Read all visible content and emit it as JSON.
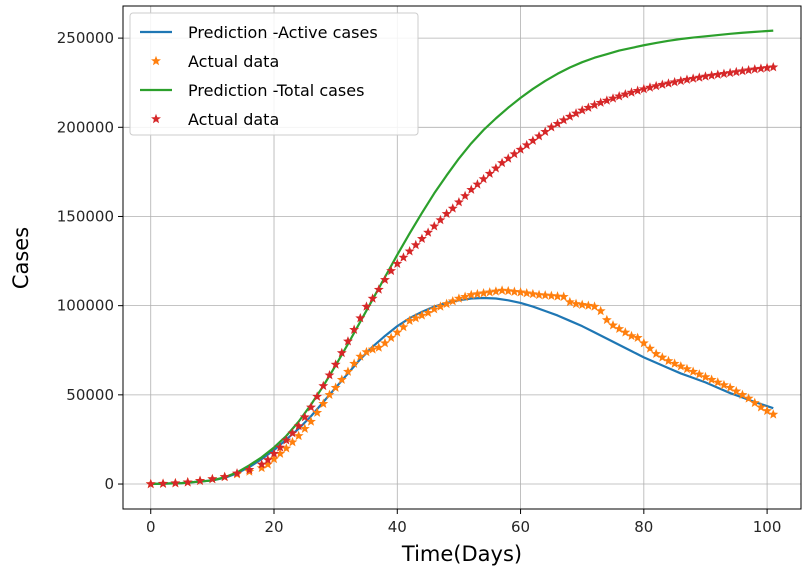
{
  "chart_data": {
    "type": "line",
    "title": "",
    "xlabel": "Time(Days)",
    "ylabel": "Cases",
    "xlim": [
      -4.5,
      105.5
    ],
    "ylim": [
      -14000,
      268000
    ],
    "xticks": [
      0,
      20,
      40,
      60,
      80,
      100
    ],
    "yticks": [
      0,
      50000,
      100000,
      150000,
      200000,
      250000
    ],
    "grid": true,
    "legend_position": "upper-left",
    "series": [
      {
        "name": "Prediction -Active cases",
        "kind": "line",
        "color": "#1f77b4",
        "x": [
          0,
          5,
          10,
          12,
          14,
          16,
          18,
          20,
          22,
          24,
          26,
          28,
          30,
          32,
          34,
          36,
          38,
          40,
          42,
          44,
          46,
          48,
          50,
          52,
          54,
          56,
          58,
          60,
          62,
          64,
          66,
          68,
          70,
          72,
          74,
          76,
          78,
          80,
          82,
          84,
          86,
          88,
          90,
          92,
          94,
          96,
          98,
          101
        ],
        "y": [
          0,
          500,
          2000,
          3500,
          6000,
          9500,
          14000,
          19000,
          25000,
          31000,
          38000,
          46000,
          54000,
          62000,
          70000,
          77000,
          83000,
          88500,
          93000,
          96500,
          99500,
          101500,
          103000,
          104000,
          104300,
          104000,
          103000,
          101500,
          99500,
          97000,
          94500,
          91500,
          88500,
          85000,
          81500,
          78000,
          74500,
          71000,
          68000,
          65000,
          62000,
          59500,
          57000,
          54000,
          51000,
          48500,
          46000,
          42500
        ]
      },
      {
        "name": "Actual data",
        "kind": "marker",
        "marker": "star",
        "color": "#ff7f0e",
        "x": [
          0,
          2,
          4,
          6,
          8,
          10,
          12,
          14,
          16,
          18,
          19,
          20,
          21,
          22,
          23,
          24,
          25,
          26,
          27,
          28,
          29,
          30,
          31,
          32,
          33,
          34,
          35,
          36,
          37,
          38,
          39,
          40,
          41,
          42,
          43,
          44,
          45,
          46,
          47,
          48,
          49,
          50,
          51,
          52,
          53,
          54,
          55,
          56,
          57,
          58,
          59,
          60,
          61,
          62,
          63,
          64,
          65,
          66,
          67,
          68,
          69,
          70,
          71,
          72,
          73,
          74,
          75,
          76,
          77,
          78,
          79,
          80,
          81,
          82,
          83,
          84,
          85,
          86,
          87,
          88,
          89,
          90,
          91,
          92,
          93,
          94,
          95,
          96,
          97,
          98,
          99,
          100,
          101
        ],
        "y": [
          0,
          200,
          500,
          1000,
          1800,
          2800,
          4000,
          5500,
          7000,
          9000,
          11000,
          14000,
          17000,
          20000,
          23500,
          27000,
          31000,
          35000,
          40000,
          45000,
          50000,
          54000,
          58500,
          63000,
          67500,
          71500,
          74000,
          75500,
          76500,
          79000,
          82000,
          85000,
          88000,
          91500,
          93000,
          94500,
          96000,
          98000,
          99500,
          101000,
          102500,
          104000,
          105000,
          106000,
          106500,
          107000,
          107500,
          108000,
          108500,
          108200,
          107800,
          107500,
          107000,
          106500,
          106000,
          105800,
          105500,
          105200,
          105000,
          102000,
          101000,
          100500,
          100000,
          99500,
          97000,
          92000,
          89000,
          87000,
          85000,
          83000,
          82000,
          79000,
          76000,
          73000,
          71000,
          69000,
          67500,
          66000,
          64500,
          63000,
          61500,
          60000,
          58500,
          57000,
          55500,
          54000,
          52000,
          50000,
          48000,
          45500,
          43000,
          41000,
          39000
        ]
      },
      {
        "name": "Prediction -Total cases",
        "kind": "line",
        "color": "#2ca02c",
        "x": [
          0,
          5,
          10,
          12,
          14,
          16,
          18,
          20,
          22,
          24,
          26,
          28,
          30,
          32,
          34,
          36,
          38,
          40,
          42,
          44,
          46,
          48,
          50,
          52,
          54,
          56,
          58,
          60,
          62,
          64,
          66,
          68,
          70,
          72,
          74,
          76,
          78,
          80,
          82,
          84,
          86,
          88,
          90,
          92,
          94,
          96,
          98,
          101
        ],
        "y": [
          0,
          500,
          2000,
          3800,
          6500,
          10500,
          15000,
          20500,
          27000,
          35000,
          44500,
          55000,
          66500,
          78500,
          91000,
          103500,
          116000,
          128500,
          140500,
          152000,
          163000,
          173000,
          182500,
          191000,
          198500,
          205000,
          211000,
          216500,
          221500,
          226000,
          230000,
          233500,
          236500,
          239000,
          241000,
          243000,
          244500,
          246000,
          247300,
          248500,
          249500,
          250300,
          251000,
          251700,
          252400,
          253000,
          253500,
          254200
        ]
      },
      {
        "name": "Actual data",
        "kind": "marker",
        "marker": "star",
        "color": "#d62728",
        "x": [
          0,
          2,
          4,
          6,
          8,
          10,
          12,
          14,
          16,
          18,
          19,
          20,
          21,
          22,
          23,
          24,
          25,
          26,
          27,
          28,
          29,
          30,
          31,
          32,
          33,
          34,
          35,
          36,
          37,
          38,
          39,
          40,
          41,
          42,
          43,
          44,
          45,
          46,
          47,
          48,
          49,
          50,
          51,
          52,
          53,
          54,
          55,
          56,
          57,
          58,
          59,
          60,
          61,
          62,
          63,
          64,
          65,
          66,
          67,
          68,
          69,
          70,
          71,
          72,
          73,
          74,
          75,
          76,
          77,
          78,
          79,
          80,
          81,
          82,
          83,
          84,
          85,
          86,
          87,
          88,
          89,
          90,
          91,
          92,
          93,
          94,
          95,
          96,
          97,
          98,
          99,
          100,
          101
        ],
        "y": [
          0,
          200,
          500,
          1000,
          1800,
          2800,
          4000,
          6000,
          8000,
          11000,
          13500,
          17000,
          20500,
          24500,
          28500,
          32500,
          37500,
          43000,
          49000,
          55000,
          61000,
          67000,
          73500,
          80000,
          86500,
          93000,
          99500,
          104000,
          109000,
          114500,
          119500,
          123500,
          127000,
          130500,
          134000,
          137500,
          141000,
          144500,
          148000,
          151500,
          154500,
          158000,
          161500,
          165000,
          168000,
          171000,
          174000,
          177000,
          180000,
          182500,
          185000,
          187500,
          190000,
          192500,
          195000,
          197500,
          200000,
          202000,
          204000,
          206000,
          207800,
          209500,
          211000,
          212500,
          213800,
          215000,
          216200,
          217400,
          218500,
          219500,
          220500,
          221400,
          222300,
          223100,
          223900,
          224600,
          225300,
          226000,
          226700,
          227300,
          227900,
          228500,
          229000,
          229500,
          230000,
          230500,
          231000,
          231500,
          232000,
          232500,
          232900,
          233300,
          233700
        ]
      }
    ]
  }
}
